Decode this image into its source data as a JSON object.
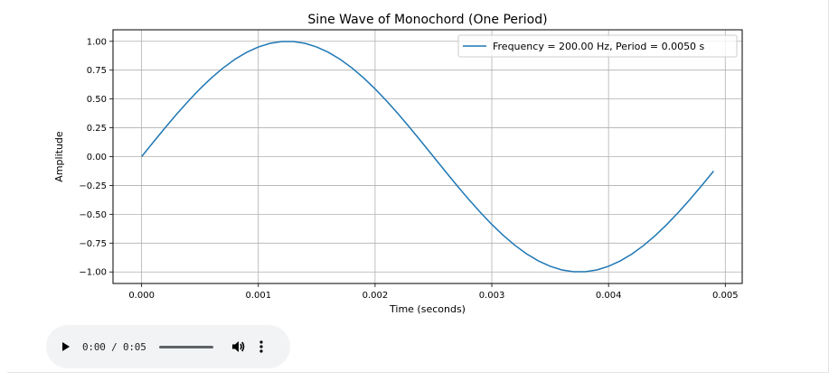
{
  "chart_data": {
    "type": "line",
    "title": "Sine Wave of Monochord (One Period)",
    "xlabel": "Time (seconds)",
    "ylabel": "Amplitude",
    "xlim": [
      -0.000245,
      0.005145
    ],
    "ylim": [
      -1.1,
      1.1
    ],
    "x_ticks": [
      0.0,
      0.001,
      0.002,
      0.003,
      0.004,
      0.005
    ],
    "x_tick_labels": [
      "0.000",
      "0.001",
      "0.002",
      "0.003",
      "0.004",
      "0.005"
    ],
    "y_ticks": [
      1.0,
      0.75,
      0.5,
      0.25,
      0.0,
      -0.25,
      -0.5,
      -0.75,
      -1.0
    ],
    "y_tick_labels": [
      "1.00",
      "0.75",
      "0.50",
      "0.25",
      "0.00",
      "−0.25",
      "−0.50",
      "−0.75",
      "−1.00"
    ],
    "grid": true,
    "legend_position": "top-right",
    "series": [
      {
        "name": "Frequency = 200.00 Hz, Period = 0.0050 s",
        "color": "#1f77b4",
        "frequency_hz": 200,
        "x_start": 0.0,
        "x_end": 0.0049,
        "x_step": 0.0001
      }
    ]
  },
  "audio": {
    "time": "0:00 / 0:05",
    "progress": 0.0
  }
}
